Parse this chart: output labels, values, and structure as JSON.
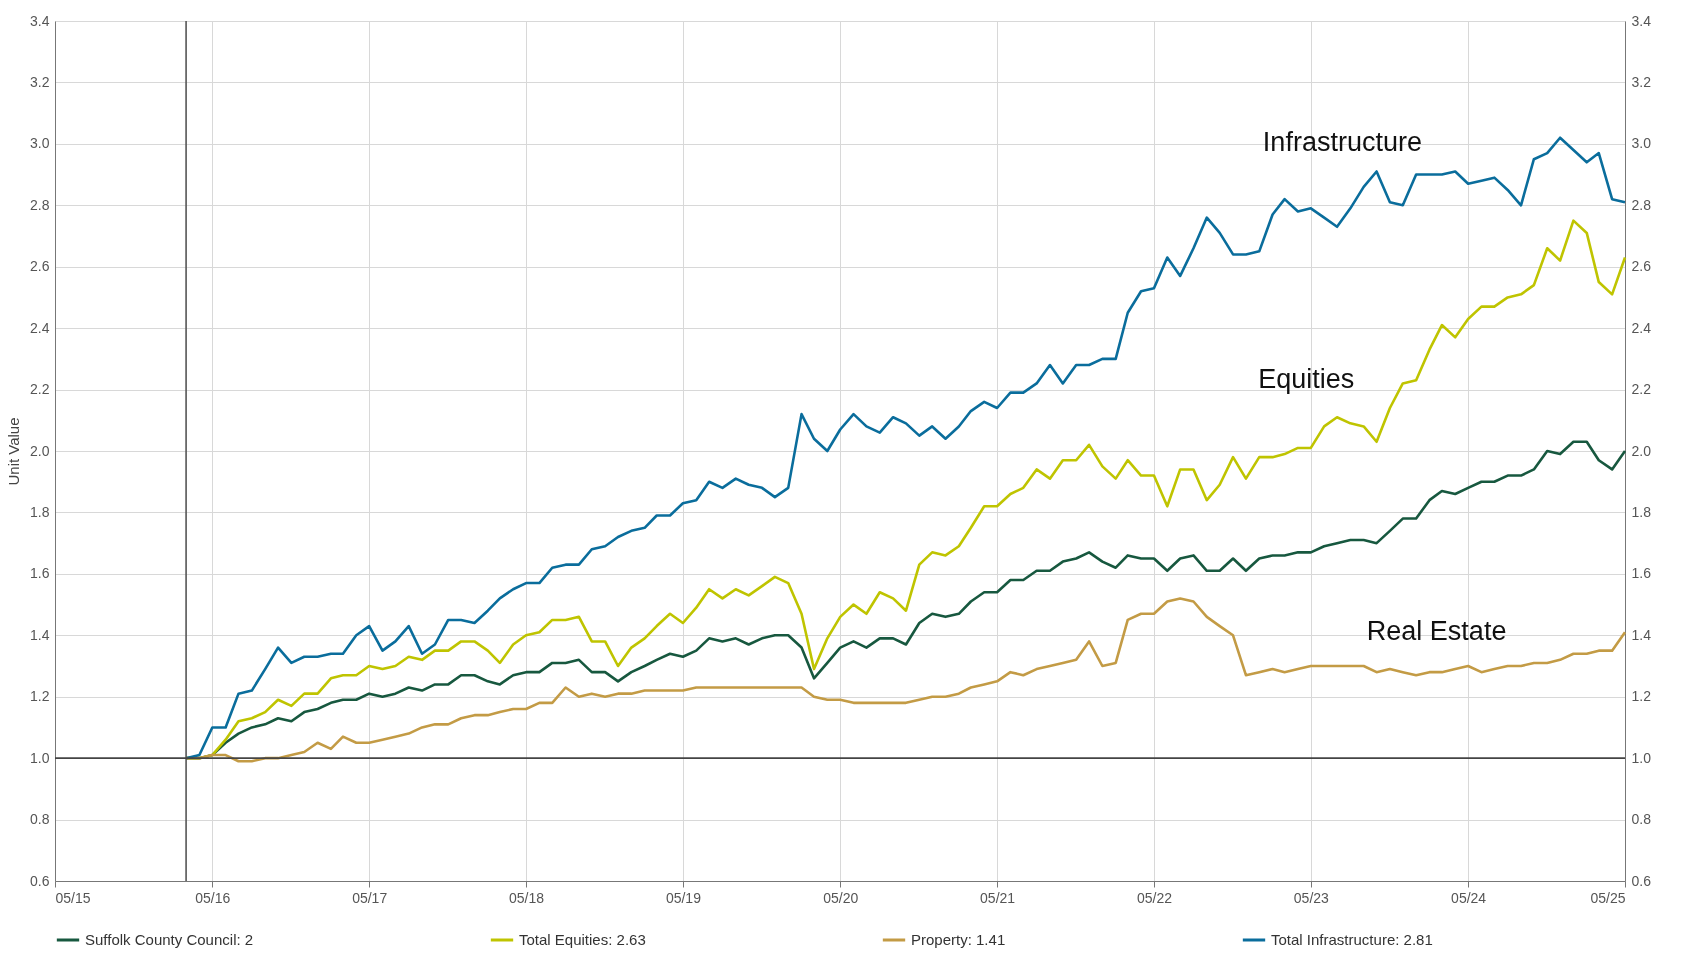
{
  "chart_data": {
    "type": "line",
    "ylabel": "Unit Value",
    "legend": "bottom",
    "grid": true,
    "x": [
      "2016-03",
      "2016-04",
      "2016-05",
      "2016-06",
      "2016-07",
      "2016-08",
      "2016-09",
      "2016-10",
      "2016-11",
      "2016-12",
      "2017-01",
      "2017-02",
      "2017-03",
      "2017-04",
      "2017-05",
      "2017-06",
      "2017-07",
      "2017-08",
      "2017-09",
      "2017-10",
      "2017-11",
      "2017-12",
      "2018-01",
      "2018-02",
      "2018-03",
      "2018-04",
      "2018-05",
      "2018-06",
      "2018-07",
      "2018-08",
      "2018-09",
      "2018-10",
      "2018-11",
      "2018-12",
      "2019-01",
      "2019-02",
      "2019-03",
      "2019-04",
      "2019-05",
      "2019-06",
      "2019-07",
      "2019-08",
      "2019-09",
      "2019-10",
      "2019-11",
      "2019-12",
      "2020-01",
      "2020-02",
      "2020-03",
      "2020-04",
      "2020-05",
      "2020-06",
      "2020-07",
      "2020-08",
      "2020-09",
      "2020-10",
      "2020-11",
      "2020-12",
      "2021-01",
      "2021-02",
      "2021-03",
      "2021-04",
      "2021-05",
      "2021-06",
      "2021-07",
      "2021-08",
      "2021-09",
      "2021-10",
      "2021-11",
      "2021-12",
      "2022-01",
      "2022-02",
      "2022-03",
      "2022-04",
      "2022-05",
      "2022-06",
      "2022-07",
      "2022-08",
      "2022-09",
      "2022-10",
      "2022-11",
      "2022-12",
      "2023-01",
      "2023-02",
      "2023-03",
      "2023-04",
      "2023-05",
      "2023-06",
      "2023-07",
      "2023-08",
      "2023-09",
      "2023-10",
      "2023-11",
      "2023-12",
      "2024-01",
      "2024-02",
      "2024-03",
      "2024-04",
      "2024-05",
      "2024-06",
      "2024-07",
      "2024-08",
      "2024-09",
      "2024-10",
      "2024-11",
      "2024-12",
      "2025-01",
      "2025-02",
      "2025-03",
      "2025-04",
      "2025-05"
    ],
    "xlim": [
      "2015-05",
      "2025-05"
    ],
    "xticks": [
      {
        "value": "2015-05",
        "label": "05/15"
      },
      {
        "value": "2016-05",
        "label": "05/16"
      },
      {
        "value": "2017-05",
        "label": "05/17"
      },
      {
        "value": "2018-05",
        "label": "05/18"
      },
      {
        "value": "2019-05",
        "label": "05/19"
      },
      {
        "value": "2020-05",
        "label": "05/20"
      },
      {
        "value": "2021-05",
        "label": "05/21"
      },
      {
        "value": "2022-05",
        "label": "05/22"
      },
      {
        "value": "2023-05",
        "label": "05/23"
      },
      {
        "value": "2024-05",
        "label": "05/24"
      },
      {
        "value": "2025-05",
        "label": "05/25"
      }
    ],
    "ylim": [
      0.6,
      3.4
    ],
    "yticks": [
      0.6,
      0.8,
      {
        "value": 1,
        "label": "1.0"
      },
      1.2,
      1.4,
      1.6,
      1.8,
      {
        "value": 2,
        "label": "2.0"
      },
      2.2,
      2.4,
      2.6,
      2.8,
      {
        "value": 3,
        "label": "3.0"
      },
      3.2,
      3.4
    ],
    "y2lim": [
      0.6,
      3.4
    ],
    "y2ticks": [
      0.6,
      0.8,
      {
        "value": 1,
        "label": "1.0"
      },
      1.2,
      1.4,
      1.6,
      1.8,
      {
        "value": 2,
        "label": "2.0"
      },
      2.2,
      2.4,
      2.6,
      2.8,
      {
        "value": 3,
        "label": "3.0"
      },
      3.2,
      3.4
    ],
    "series": [
      {
        "name": "Suffolk County Council: 2",
        "color": "#17583f",
        "values": [
          1.0,
          1.0,
          1.01,
          1.05,
          1.08,
          1.1,
          1.11,
          1.13,
          1.12,
          1.15,
          1.16,
          1.18,
          1.19,
          1.19,
          1.21,
          1.2,
          1.21,
          1.23,
          1.22,
          1.24,
          1.24,
          1.27,
          1.27,
          1.25,
          1.24,
          1.27,
          1.28,
          1.28,
          1.31,
          1.31,
          1.32,
          1.28,
          1.28,
          1.25,
          1.28,
          1.3,
          1.32,
          1.34,
          1.33,
          1.35,
          1.39,
          1.38,
          1.39,
          1.37,
          1.39,
          1.4,
          1.4,
          1.36,
          1.26,
          1.31,
          1.36,
          1.38,
          1.36,
          1.39,
          1.39,
          1.37,
          1.44,
          1.47,
          1.46,
          1.47,
          1.51,
          1.54,
          1.54,
          1.58,
          1.58,
          1.61,
          1.61,
          1.64,
          1.65,
          1.67,
          1.64,
          1.62,
          1.66,
          1.65,
          1.65,
          1.61,
          1.65,
          1.66,
          1.61,
          1.61,
          1.65,
          1.61,
          1.65,
          1.66,
          1.66,
          1.67,
          1.67,
          1.69,
          1.7,
          1.71,
          1.71,
          1.7,
          1.74,
          1.78,
          1.78,
          1.84,
          1.87,
          1.86,
          1.88,
          1.9,
          1.9,
          1.92,
          1.92,
          1.94,
          2.0,
          1.99,
          2.03,
          2.03,
          1.97,
          1.94,
          2.0
        ]
      },
      {
        "name": "Total Equities: 2.63",
        "color": "#bfc400",
        "values": [
          1.0,
          1.0,
          1.01,
          1.06,
          1.12,
          1.13,
          1.15,
          1.19,
          1.17,
          1.21,
          1.21,
          1.26,
          1.27,
          1.27,
          1.3,
          1.29,
          1.3,
          1.33,
          1.32,
          1.35,
          1.35,
          1.38,
          1.38,
          1.35,
          1.31,
          1.37,
          1.4,
          1.41,
          1.45,
          1.45,
          1.46,
          1.38,
          1.38,
          1.3,
          1.36,
          1.39,
          1.43,
          1.47,
          1.44,
          1.49,
          1.55,
          1.52,
          1.55,
          1.53,
          1.56,
          1.59,
          1.57,
          1.47,
          1.29,
          1.39,
          1.46,
          1.5,
          1.47,
          1.54,
          1.52,
          1.48,
          1.63,
          1.67,
          1.66,
          1.69,
          1.75,
          1.82,
          1.82,
          1.86,
          1.88,
          1.94,
          1.91,
          1.97,
          1.97,
          2.02,
          1.95,
          1.91,
          1.97,
          1.92,
          1.92,
          1.82,
          1.94,
          1.94,
          1.84,
          1.89,
          1.98,
          1.91,
          1.98,
          1.98,
          1.99,
          2.01,
          2.01,
          2.08,
          2.11,
          2.09,
          2.08,
          2.03,
          2.14,
          2.22,
          2.23,
          2.33,
          2.41,
          2.37,
          2.43,
          2.47,
          2.47,
          2.5,
          2.51,
          2.54,
          2.66,
          2.62,
          2.75,
          2.71,
          2.55,
          2.51,
          2.63
        ]
      },
      {
        "name": "Property: 1.41",
        "color": "#c39b45",
        "values": [
          1.0,
          1.0,
          1.01,
          1.01,
          0.99,
          0.99,
          1.0,
          1.0,
          1.01,
          1.02,
          1.05,
          1.03,
          1.07,
          1.05,
          1.05,
          1.06,
          1.07,
          1.08,
          1.1,
          1.11,
          1.11,
          1.13,
          1.14,
          1.14,
          1.15,
          1.16,
          1.16,
          1.18,
          1.18,
          1.23,
          1.2,
          1.21,
          1.2,
          1.21,
          1.21,
          1.22,
          1.22,
          1.22,
          1.22,
          1.23,
          1.23,
          1.23,
          1.23,
          1.23,
          1.23,
          1.23,
          1.23,
          1.23,
          1.2,
          1.19,
          1.19,
          1.18,
          1.18,
          1.18,
          1.18,
          1.18,
          1.19,
          1.2,
          1.2,
          1.21,
          1.23,
          1.24,
          1.25,
          1.28,
          1.27,
          1.29,
          1.3,
          1.31,
          1.32,
          1.38,
          1.3,
          1.31,
          1.45,
          1.47,
          1.47,
          1.51,
          1.52,
          1.51,
          1.46,
          1.43,
          1.4,
          1.27,
          1.28,
          1.29,
          1.28,
          1.29,
          1.3,
          1.3,
          1.3,
          1.3,
          1.3,
          1.28,
          1.29,
          1.28,
          1.27,
          1.28,
          1.28,
          1.29,
          1.3,
          1.28,
          1.29,
          1.3,
          1.3,
          1.31,
          1.31,
          1.32,
          1.34,
          1.34,
          1.35,
          1.35,
          1.41
        ]
      },
      {
        "name": "Total Infrastructure: 2.81",
        "color": "#0a6d9c",
        "values": [
          1.0,
          1.01,
          1.1,
          1.1,
          1.21,
          1.22,
          1.29,
          1.36,
          1.31,
          1.33,
          1.33,
          1.34,
          1.34,
          1.4,
          1.43,
          1.35,
          1.38,
          1.43,
          1.34,
          1.37,
          1.45,
          1.45,
          1.44,
          1.48,
          1.52,
          1.55,
          1.57,
          1.57,
          1.62,
          1.63,
          1.63,
          1.68,
          1.69,
          1.72,
          1.74,
          1.75,
          1.79,
          1.79,
          1.83,
          1.84,
          1.9,
          1.88,
          1.91,
          1.89,
          1.88,
          1.85,
          1.88,
          2.12,
          2.04,
          2.0,
          2.07,
          2.12,
          2.08,
          2.06,
          2.11,
          2.09,
          2.05,
          2.08,
          2.04,
          2.08,
          2.13,
          2.16,
          2.14,
          2.19,
          2.19,
          2.22,
          2.28,
          2.22,
          2.28,
          2.28,
          2.3,
          2.3,
          2.45,
          2.52,
          2.53,
          2.63,
          2.57,
          2.66,
          2.76,
          2.71,
          2.64,
          2.64,
          2.65,
          2.77,
          2.82,
          2.78,
          2.79,
          2.76,
          2.73,
          2.79,
          2.86,
          2.91,
          2.81,
          2.8,
          2.9,
          2.9,
          2.9,
          2.91,
          2.87,
          2.88,
          2.89,
          2.85,
          2.8,
          2.95,
          2.97,
          3.02,
          2.98,
          2.94,
          2.97,
          2.82,
          2.81
        ]
      }
    ],
    "ref_lines": [
      {
        "axis": "x",
        "value": "2016-03",
        "color": "#555555"
      },
      {
        "axis": "y",
        "value": 1,
        "color": "#444444"
      }
    ],
    "annotations": [
      "Infrastructure",
      "Equities",
      "Real Estate"
    ]
  }
}
